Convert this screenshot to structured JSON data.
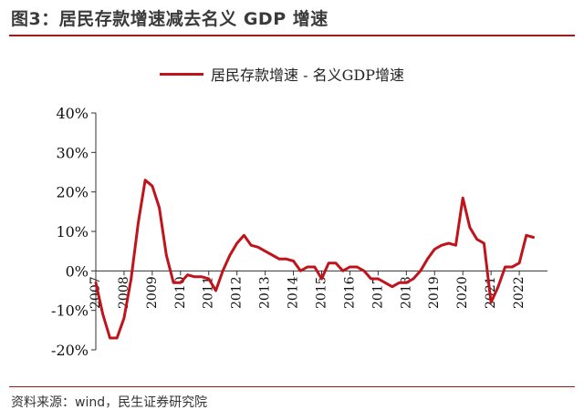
{
  "header": {
    "title": "图3：居民存款增速减去名义 GDP 增速"
  },
  "footer": {
    "source": "资料来源：wind，民生证券研究院"
  },
  "chart_data": {
    "type": "line",
    "title": "",
    "xlabel": "",
    "ylabel": "",
    "ylim": [
      -20,
      40
    ],
    "xlim": [
      2007.0,
      2023.0
    ],
    "grid": false,
    "legend_placement": "top",
    "y_ticks": [
      "40%",
      "30%",
      "20%",
      "10%",
      "0%",
      "-10%",
      "-20%"
    ],
    "y_tick_values": [
      40,
      30,
      20,
      10,
      0,
      -10,
      -20
    ],
    "x_ticks": [
      "2007",
      "2008",
      "2009",
      "2010",
      "2011",
      "2012",
      "2013",
      "2014",
      "2015",
      "2016",
      "2017",
      "2018",
      "2019",
      "2020",
      "2021",
      "2022"
    ],
    "x_tick_values": [
      2007,
      2008,
      2009,
      2010,
      2011,
      2012,
      2013,
      2014,
      2015,
      2016,
      2017,
      2018,
      2019,
      2020,
      2021,
      2022
    ],
    "series": [
      {
        "name": "居民存款增速 - 名义GDP增速",
        "color": "#c0141c",
        "x": [
          2007.0,
          2007.25,
          2007.5,
          2007.75,
          2008.0,
          2008.25,
          2008.5,
          2008.75,
          2009.0,
          2009.25,
          2009.5,
          2009.75,
          2010.0,
          2010.25,
          2010.5,
          2010.75,
          2011.0,
          2011.25,
          2011.5,
          2011.75,
          2012.0,
          2012.25,
          2012.5,
          2012.75,
          2013.0,
          2013.25,
          2013.5,
          2013.75,
          2014.0,
          2014.25,
          2014.5,
          2014.75,
          2015.0,
          2015.25,
          2015.5,
          2015.75,
          2016.0,
          2016.25,
          2016.5,
          2016.75,
          2017.0,
          2017.25,
          2017.5,
          2017.75,
          2018.0,
          2018.25,
          2018.5,
          2018.75,
          2019.0,
          2019.25,
          2019.5,
          2019.75,
          2020.0,
          2020.25,
          2020.5,
          2020.75,
          2021.0,
          2021.25,
          2021.5,
          2021.75,
          2022.0,
          2022.25,
          2022.5
        ],
        "values": [
          -3,
          -11,
          -17,
          -17,
          -12,
          -2,
          12,
          23,
          21.5,
          16,
          4,
          -3,
          -3,
          -1,
          -1.5,
          -1.5,
          -2,
          -5,
          0,
          4,
          7,
          9,
          6.5,
          6,
          5,
          4,
          3,
          3,
          2.5,
          0,
          1,
          1,
          -2,
          2,
          2,
          0,
          1,
          1,
          0,
          -2,
          -2,
          -3,
          -4,
          -3,
          -3,
          -2,
          0,
          3,
          5.5,
          6.5,
          7,
          6.5,
          18.5,
          11,
          8,
          7,
          -8,
          -4,
          1,
          1,
          2,
          9,
          8.5
        ]
      }
    ]
  }
}
